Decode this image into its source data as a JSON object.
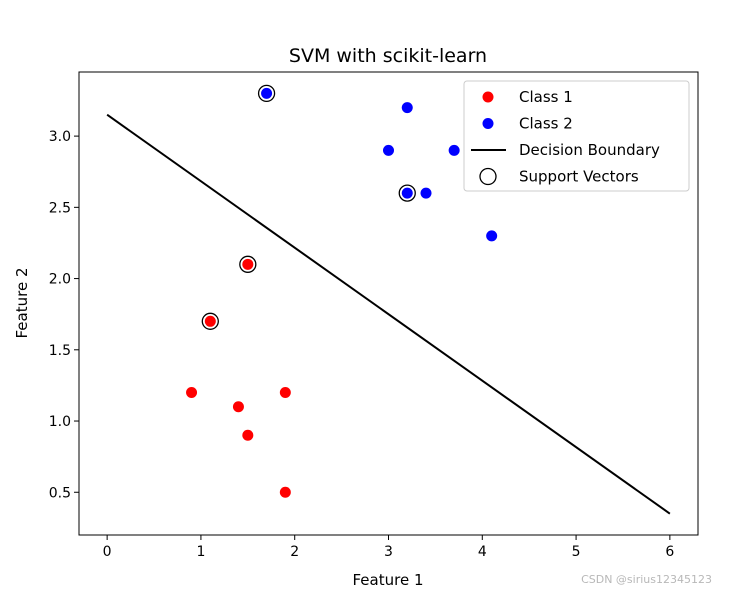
{
  "chart_data": {
    "type": "scatter",
    "title": "SVM with scikit-learn",
    "xlabel": "Feature 1",
    "ylabel": "Feature 2",
    "xlim": [
      -0.3,
      6.3
    ],
    "ylim": [
      0.2,
      3.45
    ],
    "xticks": [
      0,
      1,
      2,
      3,
      4,
      5,
      6
    ],
    "yticks": [
      0.5,
      1.0,
      1.5,
      2.0,
      2.5,
      3.0
    ],
    "xtick_labels": [
      "0",
      "1",
      "2",
      "3",
      "4",
      "5",
      "6"
    ],
    "ytick_labels": [
      "0.5",
      "1.0",
      "1.5",
      "2.0",
      "2.5",
      "3.0"
    ],
    "grid": false,
    "legend_position": "top-right",
    "series": [
      {
        "name": "Class 1",
        "kind": "points",
        "color": "#ff0000",
        "points": [
          {
            "x": 1.1,
            "y": 1.7
          },
          {
            "x": 1.5,
            "y": 2.1
          },
          {
            "x": 0.9,
            "y": 1.2
          },
          {
            "x": 1.4,
            "y": 1.1
          },
          {
            "x": 1.9,
            "y": 1.2
          },
          {
            "x": 1.5,
            "y": 0.9
          },
          {
            "x": 1.9,
            "y": 0.5
          }
        ]
      },
      {
        "name": "Class 2",
        "kind": "points",
        "color": "#0000ff",
        "points": [
          {
            "x": 1.7,
            "y": 3.3
          },
          {
            "x": 3.2,
            "y": 3.2
          },
          {
            "x": 3.0,
            "y": 2.9
          },
          {
            "x": 3.7,
            "y": 2.9
          },
          {
            "x": 3.2,
            "y": 2.6
          },
          {
            "x": 3.4,
            "y": 2.6
          },
          {
            "x": 4.1,
            "y": 2.3
          }
        ]
      },
      {
        "name": "Decision Boundary",
        "kind": "line",
        "color": "#000000",
        "points": [
          {
            "x": 0,
            "y": 3.15
          },
          {
            "x": 6,
            "y": 0.35
          }
        ]
      },
      {
        "name": "Support Vectors",
        "kind": "hollow-points",
        "color": "#000000",
        "points": [
          {
            "x": 1.7,
            "y": 3.3
          },
          {
            "x": 3.2,
            "y": 2.6
          },
          {
            "x": 1.5,
            "y": 2.1
          },
          {
            "x": 1.1,
            "y": 1.7
          }
        ]
      }
    ]
  },
  "watermark": "CSDN @sirius12345123"
}
